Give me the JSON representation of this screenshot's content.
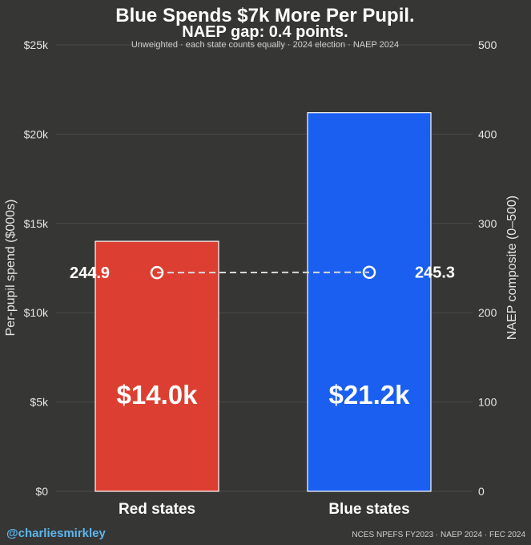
{
  "header": {
    "title": "Blue Spends $7k More Per Pupil.",
    "subtitle": "NAEP gap: 0.4 points.",
    "note": "Unweighted  ·  each state counts equally  ·  2024 election  ·  NAEP 2024"
  },
  "footer": {
    "handle": "@charliesmirkley",
    "source": "NCES NPEFS FY2023  ·  NAEP 2024  ·  FEC 2024"
  },
  "colors": {
    "background": "#363634",
    "red": "#dc3f31",
    "blue": "#1a5ff0",
    "line": "#d9d9d9",
    "handle": "#5db6ee"
  },
  "chart_data": {
    "type": "bar",
    "title": "Blue Spends $7k More Per Pupil.",
    "categories": [
      "Red states",
      "Blue states"
    ],
    "series": [
      {
        "name": "Per-pupil spend ($000s)",
        "axis": "left",
        "values": [
          14.0,
          21.2
        ],
        "labels": [
          "$14.0k",
          "$21.2k"
        ]
      },
      {
        "name": "NAEP composite (0–500)",
        "axis": "right",
        "type": "line",
        "values": [
          244.9,
          245.3
        ],
        "labels": [
          "244.9",
          "245.3"
        ]
      }
    ],
    "left_axis": {
      "label": "Per-pupil spend ($000s)",
      "ylim": [
        0,
        25
      ],
      "ticks": [
        0,
        5,
        10,
        15,
        20,
        25
      ],
      "tick_labels": [
        "$0",
        "$5k",
        "$10k",
        "$15k",
        "$20k",
        "$25k"
      ]
    },
    "right_axis": {
      "label": "NAEP composite (0–500)",
      "ylim": [
        0,
        500
      ],
      "ticks": [
        0,
        100,
        200,
        300,
        400,
        500
      ],
      "tick_labels": [
        "0",
        "100",
        "200",
        "300",
        "400",
        "500"
      ]
    },
    "grid": true
  }
}
